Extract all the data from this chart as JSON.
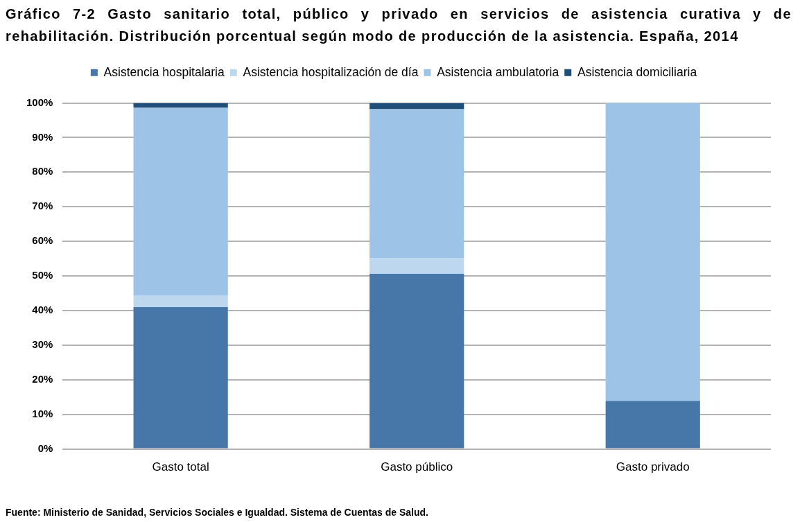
{
  "chart_data": {
    "type": "bar",
    "title": "Gráfico 7-2 Gasto sanitario total, público y privado en servicios de asistencia curativa y de rehabilitación. Distribución porcentual según modo de producción de la asistencia. España, 2014",
    "categories": [
      "Gasto total",
      "Gasto público",
      "Gasto privado"
    ],
    "series": [
      {
        "name": "Asistencia hospitalaria",
        "color": "#4677a8",
        "values": [
          41.0,
          50.6,
          13.9
        ]
      },
      {
        "name": "Asistencia hospitalización de día",
        "color": "#bdd7ee",
        "values": [
          3.4,
          4.6,
          0
        ]
      },
      {
        "name": "Asistencia ambulatoria",
        "color": "#9dc3e6",
        "values": [
          54.2,
          43.0,
          86.1
        ]
      },
      {
        "name": "Asistencia domiciliaria",
        "color": "#1f4e79",
        "values": [
          1.4,
          1.8,
          0
        ]
      }
    ],
    "stacked": true,
    "ylim": [
      0,
      100
    ],
    "yticks": [
      {
        "value": 0,
        "label": "0%"
      },
      {
        "value": 10,
        "label": "10%"
      },
      {
        "value": 20,
        "label": "20%"
      },
      {
        "value": 30,
        "label": "30%"
      },
      {
        "value": 40,
        "label": "40%"
      },
      {
        "value": 50,
        "label": "50%"
      },
      {
        "value": 60,
        "label": "60%"
      },
      {
        "value": 70,
        "label": "70%"
      },
      {
        "value": 80,
        "label": "80%"
      },
      {
        "value": 90,
        "label": "90%"
      },
      {
        "value": 100,
        "label": "100%"
      }
    ],
    "grid": "y",
    "legend": "top",
    "annotations": [
      "Fuente: Ministerio de Sanidad, Servicios Sociales e Igualdad. Sistema de Cuentas de Salud."
    ]
  }
}
